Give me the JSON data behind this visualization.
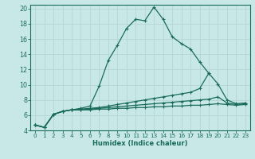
{
  "xlabel": "Humidex (Indice chaleur)",
  "ylabel": "",
  "background_color": "#c8e8e8",
  "grid_color": "#b8d8d8",
  "line_color": "#1a6b5a",
  "xlim": [
    -0.5,
    23.5
  ],
  "ylim": [
    4,
    20.5
  ],
  "xticks": [
    0,
    1,
    2,
    3,
    4,
    5,
    6,
    7,
    8,
    9,
    10,
    11,
    12,
    13,
    14,
    15,
    16,
    17,
    18,
    19,
    20,
    21,
    22,
    23
  ],
  "yticks": [
    4,
    6,
    8,
    10,
    12,
    14,
    16,
    18,
    20
  ],
  "lines": [
    {
      "x": [
        0,
        1,
        2,
        3,
        4,
        5,
        6,
        7,
        8,
        9,
        10,
        11,
        12,
        13,
        14,
        15,
        16,
        17,
        18,
        19,
        20,
        21,
        22,
        23
      ],
      "y": [
        4.7,
        4.4,
        6.1,
        6.5,
        6.7,
        6.9,
        7.2,
        9.8,
        13.2,
        15.2,
        17.4,
        18.6,
        18.4,
        20.2,
        18.6,
        16.3,
        15.4,
        14.7,
        13.0,
        11.5,
        null,
        null,
        null,
        null
      ]
    },
    {
      "x": [
        0,
        1,
        2,
        3,
        4,
        5,
        6,
        7,
        8,
        9,
        10,
        11,
        12,
        13,
        14,
        15,
        16,
        17,
        18,
        19,
        20,
        21,
        22,
        23
      ],
      "y": [
        4.7,
        4.4,
        6.1,
        6.5,
        6.7,
        6.8,
        6.9,
        7.0,
        7.2,
        7.4,
        7.6,
        7.8,
        8.0,
        8.2,
        8.4,
        8.6,
        8.8,
        9.0,
        9.5,
        11.5,
        10.1,
        8.0,
        7.5,
        7.6
      ]
    },
    {
      "x": [
        0,
        1,
        2,
        3,
        4,
        5,
        6,
        7,
        8,
        9,
        10,
        11,
        12,
        13,
        14,
        15,
        16,
        17,
        18,
        19,
        20,
        21,
        22,
        23
      ],
      "y": [
        4.7,
        4.4,
        6.1,
        6.5,
        6.7,
        6.7,
        6.8,
        6.9,
        7.0,
        7.1,
        7.2,
        7.3,
        7.4,
        7.5,
        7.6,
        7.7,
        7.8,
        7.9,
        8.0,
        8.1,
        8.4,
        7.6,
        7.4,
        7.5
      ]
    },
    {
      "x": [
        0,
        1,
        2,
        3,
        4,
        5,
        6,
        7,
        8,
        9,
        10,
        11,
        12,
        13,
        14,
        15,
        16,
        17,
        18,
        19,
        20,
        21,
        22,
        23
      ],
      "y": [
        4.7,
        4.4,
        6.1,
        6.5,
        6.7,
        6.7,
        6.7,
        6.8,
        6.8,
        6.9,
        6.9,
        7.0,
        7.0,
        7.1,
        7.1,
        7.2,
        7.2,
        7.3,
        7.3,
        7.4,
        7.5,
        7.4,
        7.3,
        7.4
      ]
    }
  ]
}
